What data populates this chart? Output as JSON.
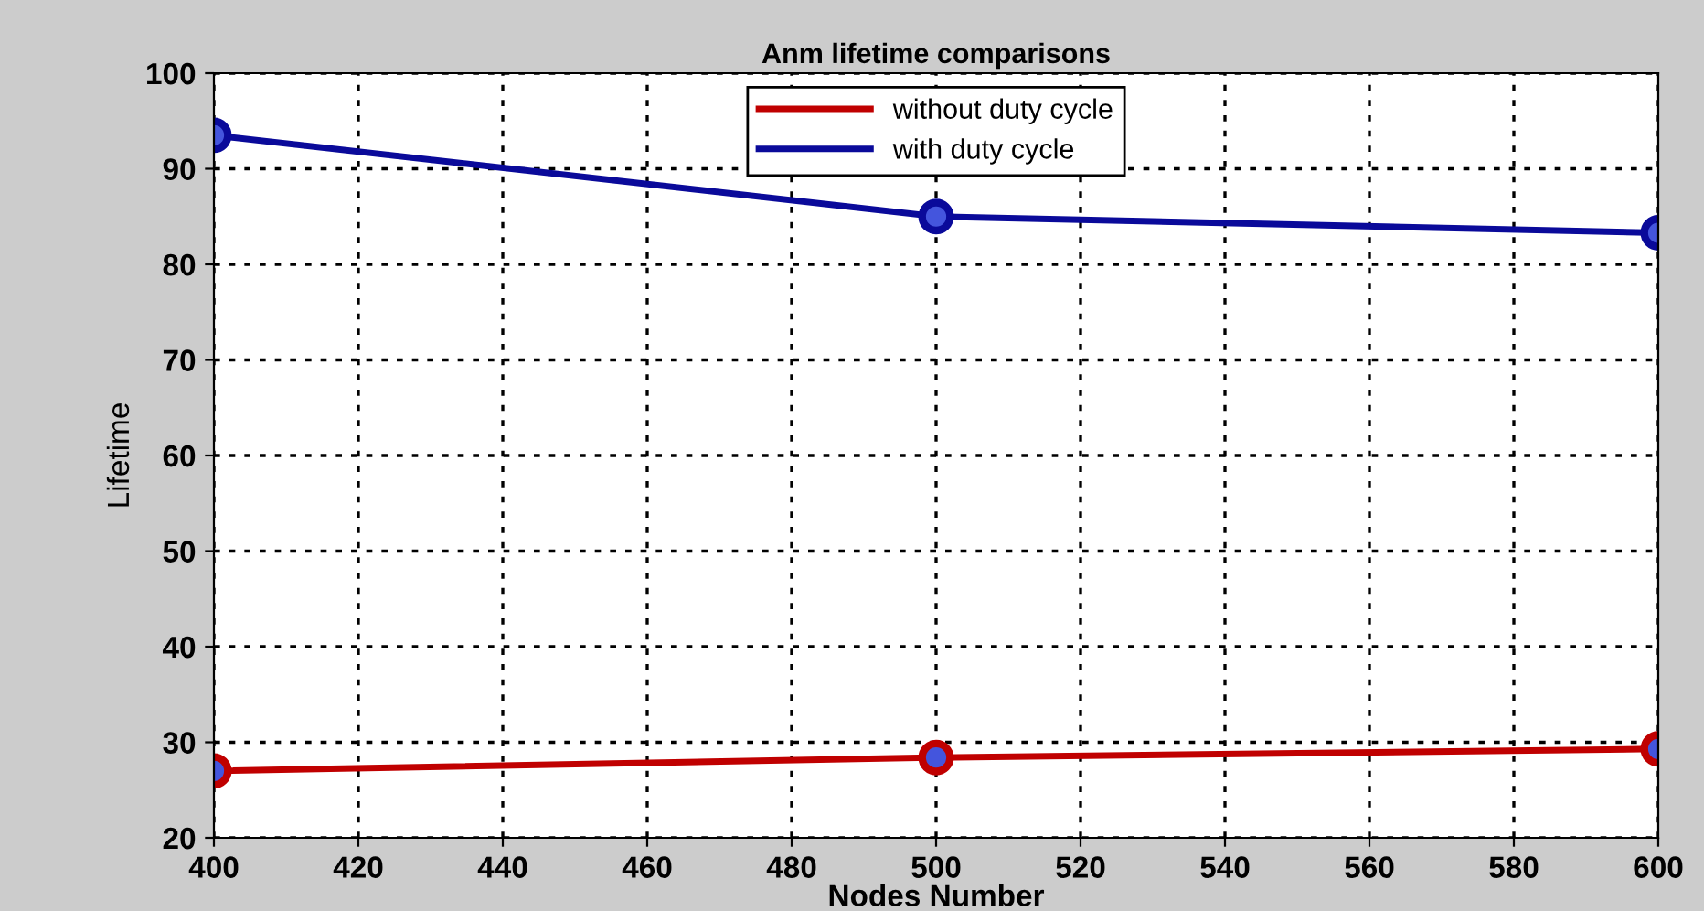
{
  "chart_data": {
    "type": "line",
    "title": "Anm lifetime comparisons",
    "xlabel": "Nodes Number",
    "ylabel": "Lifetime",
    "x": [
      400,
      500,
      600
    ],
    "series": [
      {
        "name": "without duty cycle",
        "color": "#c00000",
        "values": [
          27,
          28.4,
          29.3
        ]
      },
      {
        "name": "with duty cycle",
        "color": "#0a0a9a",
        "values": [
          93.5,
          85,
          83.3
        ]
      }
    ],
    "xlim": [
      400,
      600
    ],
    "xticks": [
      400,
      420,
      440,
      460,
      480,
      500,
      520,
      540,
      560,
      580,
      600
    ],
    "ylim": [
      20,
      100
    ],
    "yticks": [
      20,
      30,
      40,
      50,
      60,
      70,
      80,
      90,
      100
    ],
    "grid": true,
    "legend": "top",
    "marker": "circle",
    "line_style": "solid"
  }
}
